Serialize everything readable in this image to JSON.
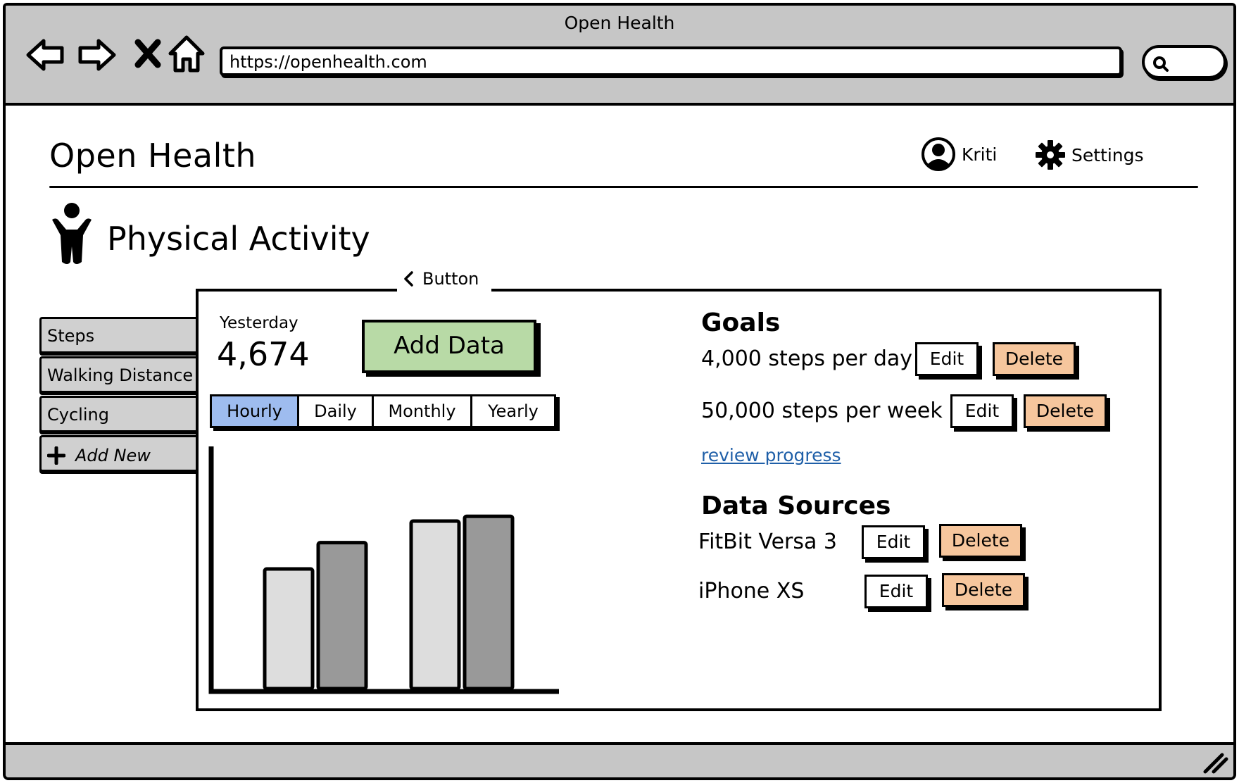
{
  "window": {
    "title": "Open Health"
  },
  "browser": {
    "url": "https://openhealth.com",
    "nav_icons": [
      "back-arrow-icon",
      "forward-arrow-icon",
      "close-x-icon",
      "home-icon"
    ],
    "search_icon": "search-icon"
  },
  "header": {
    "app_title": "Open Health",
    "user_name": "Kriti",
    "settings_label": "Settings"
  },
  "section": {
    "title": "Physical Activity",
    "icon": "person-icon"
  },
  "side_tabs": [
    {
      "label": "Steps"
    },
    {
      "label": "Walking Distance"
    },
    {
      "label": "Cycling"
    },
    {
      "label": "Add New"
    }
  ],
  "panel": {
    "tab_label": "Button",
    "yesterday_label": "Yesterday",
    "yesterday_value": "4,674",
    "add_data_label": "Add Data",
    "ranges": [
      {
        "label": "Hourly",
        "active": true
      },
      {
        "label": "Daily",
        "active": false
      },
      {
        "label": "Monthly",
        "active": false
      },
      {
        "label": "Yearly",
        "active": false
      }
    ]
  },
  "chart_data": {
    "type": "bar",
    "categories": [
      "",
      ""
    ],
    "series": [
      {
        "values": [
          50,
          70
        ],
        "color": "#dddddd"
      },
      {
        "values": [
          61,
          72
        ],
        "color": "#999999"
      }
    ],
    "title": "",
    "xlabel": "",
    "ylabel": "",
    "ylim": [
      0,
      100
    ],
    "grid": false
  },
  "goals": {
    "heading": "Goals",
    "items": [
      {
        "text": "4,000 steps per day",
        "edit_label": "Edit",
        "delete_label": "Delete"
      },
      {
        "text": "50,000 steps per week",
        "edit_label": "Edit",
        "delete_label": "Delete"
      }
    ],
    "review_link": "review progress"
  },
  "data_sources": {
    "heading": "Data Sources",
    "items": [
      {
        "text": "FitBit Versa 3",
        "edit_label": "Edit",
        "delete_label": "Delete"
      },
      {
        "text": "iPhone XS",
        "edit_label": "Edit",
        "delete_label": "Delete"
      }
    ]
  },
  "colors": {
    "chrome": "#c6c6c6",
    "add_data": "#b8daa6",
    "active_range": "#9ebcef",
    "delete": "#f6c69d",
    "link": "#1f5fa8"
  }
}
